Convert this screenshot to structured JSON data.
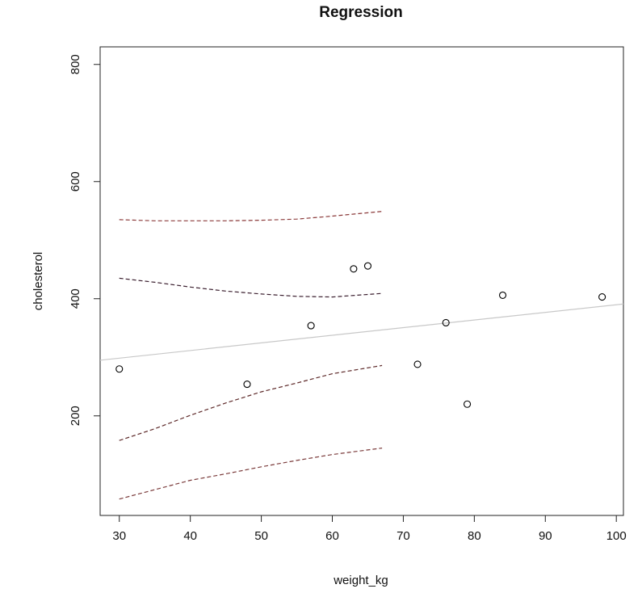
{
  "chart_data": {
    "type": "scatter",
    "title": "Regression",
    "xlabel": "weight_kg",
    "ylabel": "cholesterol",
    "xlim": [
      27.3,
      101
    ],
    "ylim": [
      30,
      830
    ],
    "x_ticks": [
      30,
      40,
      50,
      60,
      70,
      80,
      90,
      100
    ],
    "y_ticks": [
      200,
      400,
      600,
      800
    ],
    "grid": false,
    "points": [
      {
        "x": 30,
        "y": 280
      },
      {
        "x": 48,
        "y": 254
      },
      {
        "x": 57,
        "y": 354
      },
      {
        "x": 63,
        "y": 451
      },
      {
        "x": 65,
        "y": 456
      },
      {
        "x": 72,
        "y": 288
      },
      {
        "x": 76,
        "y": 359
      },
      {
        "x": 79,
        "y": 220
      },
      {
        "x": 84,
        "y": 406
      },
      {
        "x": 98,
        "y": 403
      }
    ],
    "regression_line": {
      "x": [
        27.3,
        101
      ],
      "y": [
        295,
        391
      ],
      "color": "#c8c8c8"
    },
    "bands": [
      {
        "name": "prediction-upper",
        "x": [
          30,
          35,
          40,
          45,
          50,
          55,
          60,
          67
        ],
        "y": [
          535,
          533,
          533,
          533,
          534,
          536,
          541,
          549
        ],
        "color": "#8b3a3a"
      },
      {
        "name": "confidence-upper",
        "x": [
          30,
          35,
          40,
          45,
          50,
          55,
          60,
          67
        ],
        "y": [
          435,
          428,
          420,
          413,
          408,
          404,
          403,
          409
        ],
        "color": "#3a1e2e"
      },
      {
        "name": "confidence-lower",
        "x": [
          30,
          35,
          40,
          45,
          50,
          55,
          60,
          67
        ],
        "y": [
          158,
          178,
          201,
          222,
          241,
          256,
          272,
          286
        ],
        "color": "#5e2a2a"
      },
      {
        "name": "prediction-lower",
        "x": [
          30,
          35,
          40,
          45,
          50,
          55,
          60,
          67
        ],
        "y": [
          58,
          74,
          90,
          101,
          113,
          124,
          134,
          145
        ],
        "color": "#7a3a3a"
      }
    ]
  }
}
